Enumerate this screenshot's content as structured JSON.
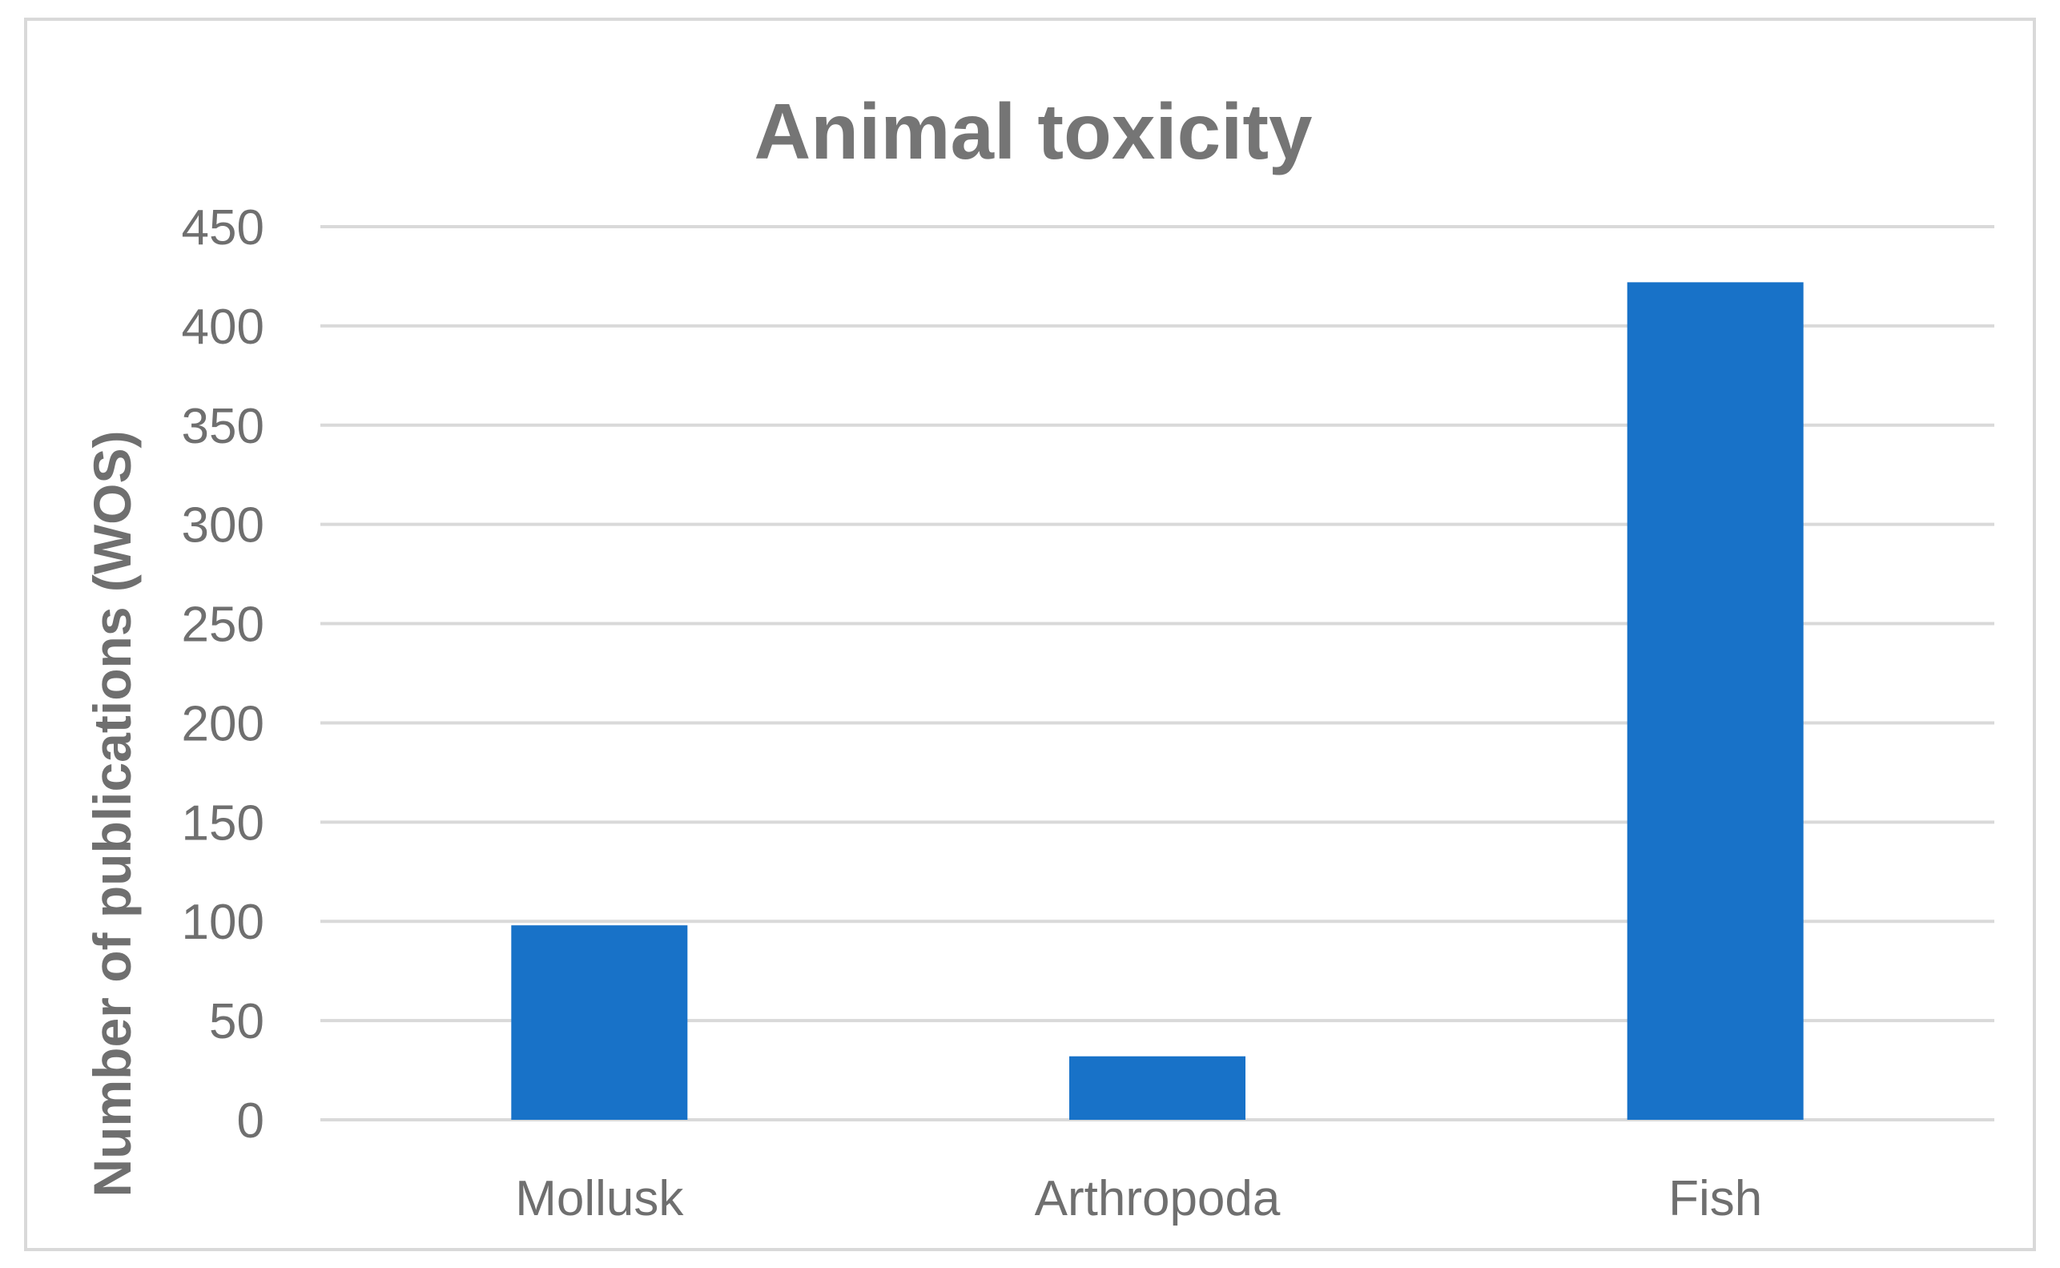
{
  "chart_data": {
    "type": "bar",
    "title": "Animal toxicity",
    "xlabel": "",
    "ylabel": "Number of publications (WOS)",
    "categories": [
      "Mollusk",
      "Arthropoda",
      "Fish"
    ],
    "values": [
      98,
      32,
      422
    ],
    "ylim": [
      0,
      450
    ],
    "yticks": [
      0,
      50,
      100,
      150,
      200,
      250,
      300,
      350,
      400,
      450
    ],
    "grid": true,
    "legend": "none",
    "colors": {
      "bar": "#1872c8",
      "grid": "#d9d9d9",
      "text": "#6f6f6f",
      "title": "#757575"
    }
  }
}
